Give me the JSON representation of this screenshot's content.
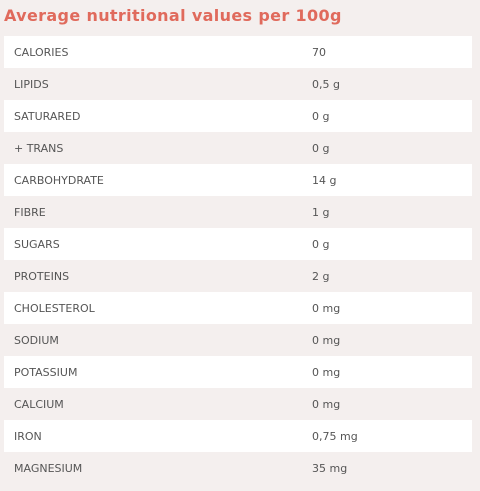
{
  "title": "Average nutritional values per 100g",
  "colors": {
    "title": "#e06a5c",
    "page_background": "#f4efee",
    "row_white": "#ffffff",
    "text": "#555555"
  },
  "rows": [
    {
      "name": "CALORIES",
      "value": "70"
    },
    {
      "name": "LIPIDS",
      "value": "0,5 g"
    },
    {
      "name": "SATURARED",
      "value": "0 g"
    },
    {
      "name": "+ TRANS",
      "value": "0 g"
    },
    {
      "name": "CARBOHYDRATE",
      "value": "14 g"
    },
    {
      "name": "FIBRE",
      "value": "1 g"
    },
    {
      "name": "SUGARS",
      "value": "0 g"
    },
    {
      "name": "PROTEINS",
      "value": "2 g"
    },
    {
      "name": "CHOLESTEROL",
      "value": "0 mg"
    },
    {
      "name": "SODIUM",
      "value": "0 mg"
    },
    {
      "name": "POTASSIUM",
      "value": "0 mg"
    },
    {
      "name": "CALCIUM",
      "value": "0 mg"
    },
    {
      "name": "IRON",
      "value": "0,75 mg"
    },
    {
      "name": "MAGNESIUM",
      "value": "35 mg"
    }
  ]
}
